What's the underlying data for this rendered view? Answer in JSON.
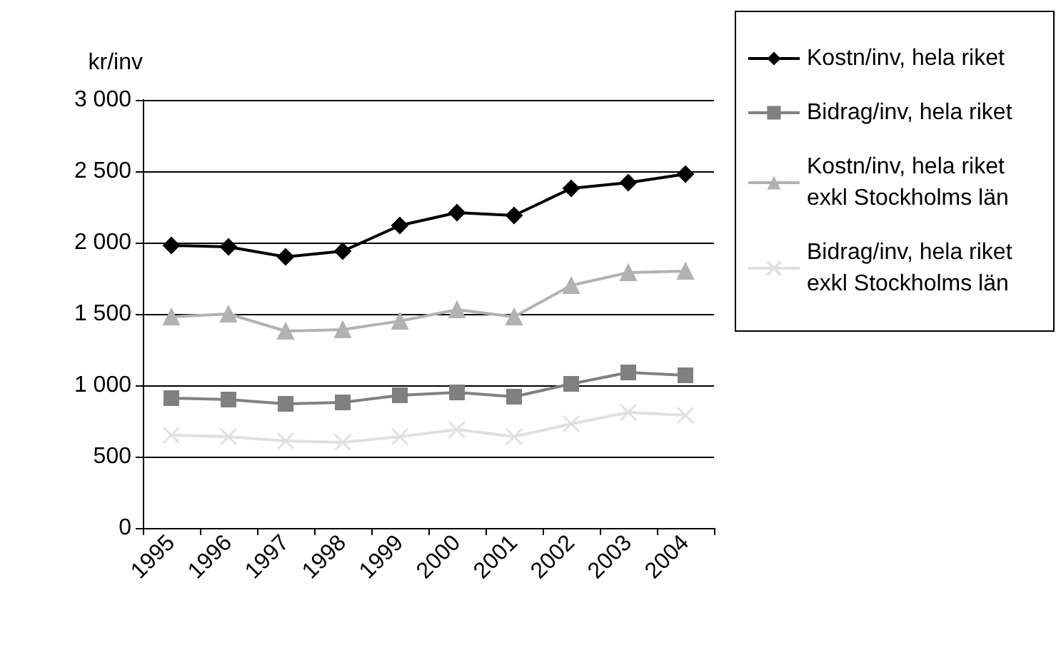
{
  "chart_data": {
    "type": "line",
    "ylabel": "kr/inv",
    "categories": [
      "1995",
      "1996",
      "1997",
      "1998",
      "1999",
      "2000",
      "2001",
      "2002",
      "2003",
      "2004"
    ],
    "series": [
      {
        "name": "Kostn/inv, hela riket",
        "color": "#000000",
        "marker": "diamond",
        "values": [
          1980,
          1970,
          1900,
          1940,
          2120,
          2210,
          2190,
          2380,
          2420,
          2480
        ]
      },
      {
        "name": "Bidrag/inv, hela riket",
        "color": "#808080",
        "marker": "square",
        "values": [
          910,
          900,
          870,
          880,
          930,
          950,
          920,
          1010,
          1090,
          1070
        ]
      },
      {
        "name": "Kostn/inv, hela riket exkl Stockholms län",
        "color": "#b2b2b2",
        "marker": "triangle",
        "values": [
          1480,
          1500,
          1380,
          1390,
          1450,
          1530,
          1480,
          1700,
          1790,
          1800
        ]
      },
      {
        "name": "Bidrag/inv, hela riket exkl Stockholms län",
        "color": "#e0e0e0",
        "marker": "cross",
        "values": [
          650,
          640,
          610,
          600,
          640,
          690,
          640,
          730,
          810,
          790
        ]
      }
    ],
    "ylim": [
      0,
      3000
    ],
    "yticks": [
      {
        "value": 0,
        "label": "0"
      },
      {
        "value": 500,
        "label": "500"
      },
      {
        "value": 1000,
        "label": "1 000"
      },
      {
        "value": 1500,
        "label": "1 500"
      },
      {
        "value": 2000,
        "label": "2 000"
      },
      {
        "value": 2500,
        "label": "2 500"
      },
      {
        "value": 3000,
        "label": "3 000"
      }
    ],
    "grid": "y",
    "legend": "right"
  }
}
